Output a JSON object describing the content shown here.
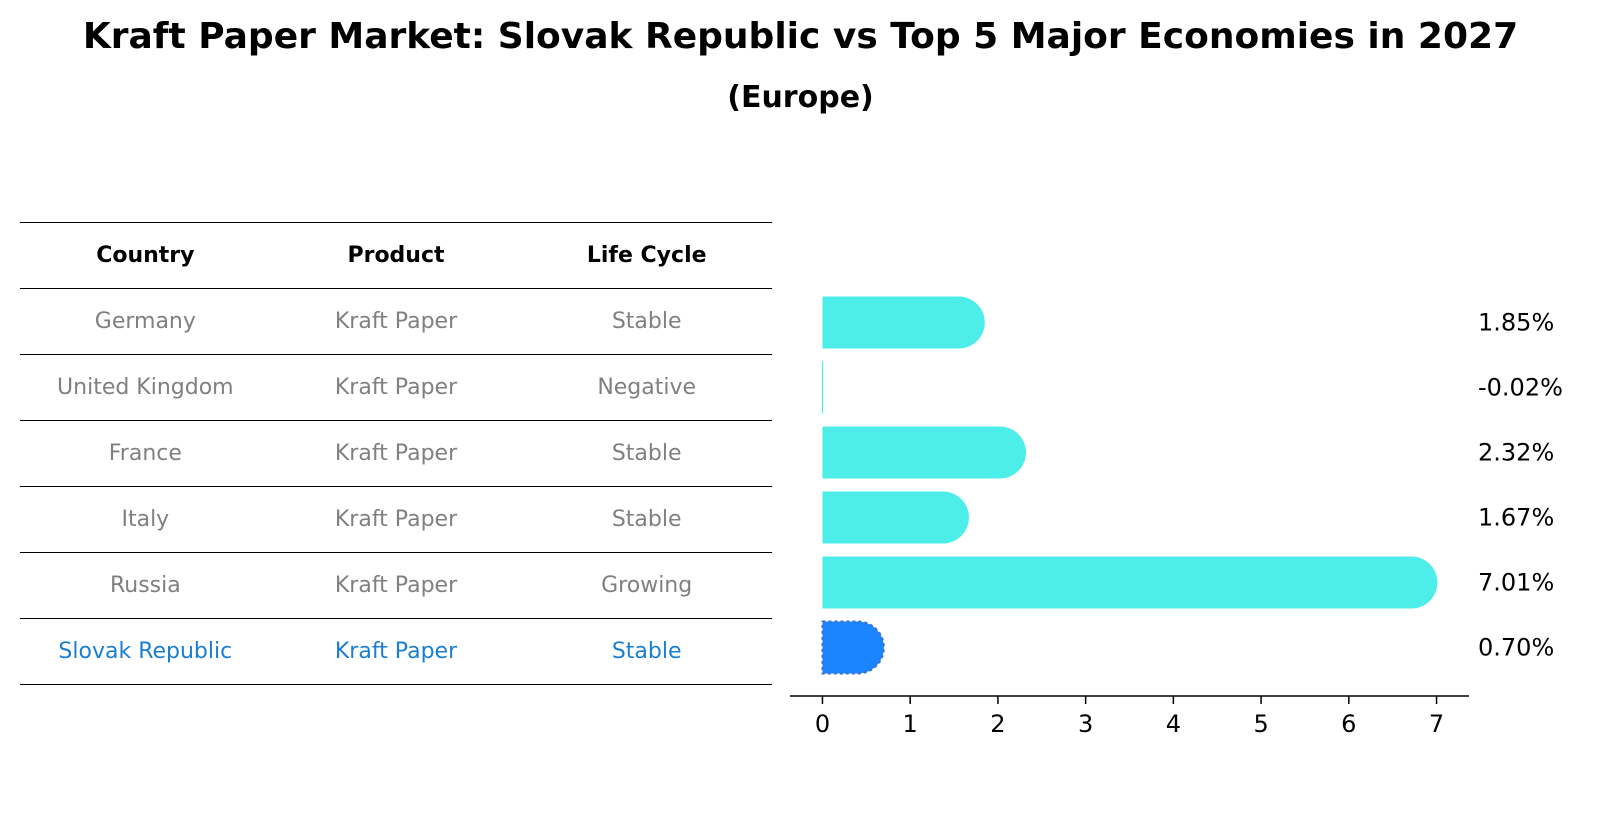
{
  "title": "Kraft Paper Market: Slovak Republic vs Top 5 Major Economies in 2027",
  "subtitle": "(Europe)",
  "table": {
    "headers": [
      "Country",
      "Product",
      "Life Cycle"
    ],
    "rows": [
      {
        "country": "Germany",
        "product": "Kraft Paper",
        "life_cycle": "Stable"
      },
      {
        "country": "United Kingdom",
        "product": "Kraft Paper",
        "life_cycle": "Negative"
      },
      {
        "country": "France",
        "product": "Kraft Paper",
        "life_cycle": "Stable"
      },
      {
        "country": "Italy",
        "product": "Kraft Paper",
        "life_cycle": "Stable"
      },
      {
        "country": "Russia",
        "product": "Kraft Paper",
        "life_cycle": "Growing"
      },
      {
        "country": "Slovak Republic",
        "product": "Kraft Paper",
        "life_cycle": "Stable"
      }
    ],
    "highlight_row": 5,
    "highlight_color": "#1a7fd2",
    "text_color": "#808080"
  },
  "chart_data": {
    "type": "bar",
    "orientation": "horizontal",
    "categories": [
      "Germany",
      "United Kingdom",
      "France",
      "Italy",
      "Russia",
      "Slovak Republic"
    ],
    "values": [
      1.85,
      -0.02,
      2.32,
      1.67,
      7.01,
      0.7
    ],
    "value_labels": [
      "1.85%",
      "-0.02%",
      "2.32%",
      "1.67%",
      "7.01%",
      "0.70%"
    ],
    "xlim": [
      -0.37,
      7.37
    ],
    "xticks": [
      0,
      1,
      2,
      3,
      4,
      5,
      6,
      7
    ],
    "colors": {
      "default": "#4deeea",
      "highlight": "#1a85ff"
    },
    "highlight_index": 5
  }
}
